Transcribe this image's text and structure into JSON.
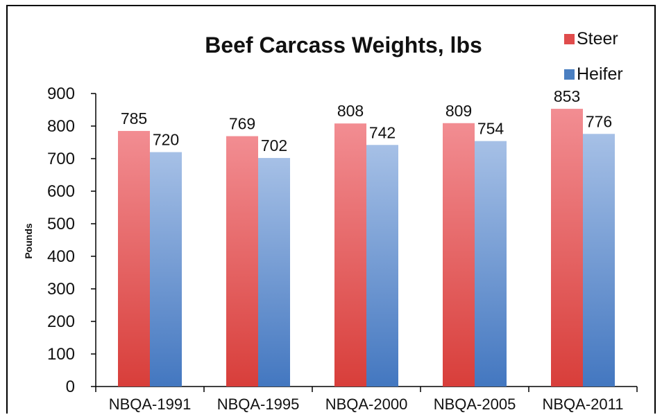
{
  "chart_data": {
    "type": "bar",
    "title": "Beef Carcass Weights, lbs",
    "ylabel": "Pounds",
    "xlabel": "",
    "categories": [
      "NBQA-1991",
      "NBQA-1995",
      "NBQA-2000",
      "NBQA-2005",
      "NBQA-2011"
    ],
    "series": [
      {
        "name": "Steer",
        "values": [
          785,
          769,
          808,
          809,
          853
        ],
        "color": "#e04c4c"
      },
      {
        "name": "Heifer",
        "values": [
          720,
          702,
          742,
          754,
          776
        ],
        "color": "#4a7fc1"
      }
    ],
    "ylim": [
      0,
      900
    ],
    "yticks": [
      0,
      100,
      200,
      300,
      400,
      500,
      600,
      700,
      800,
      900
    ],
    "grid": false,
    "legend": "top-right",
    "data_labels": true
  }
}
